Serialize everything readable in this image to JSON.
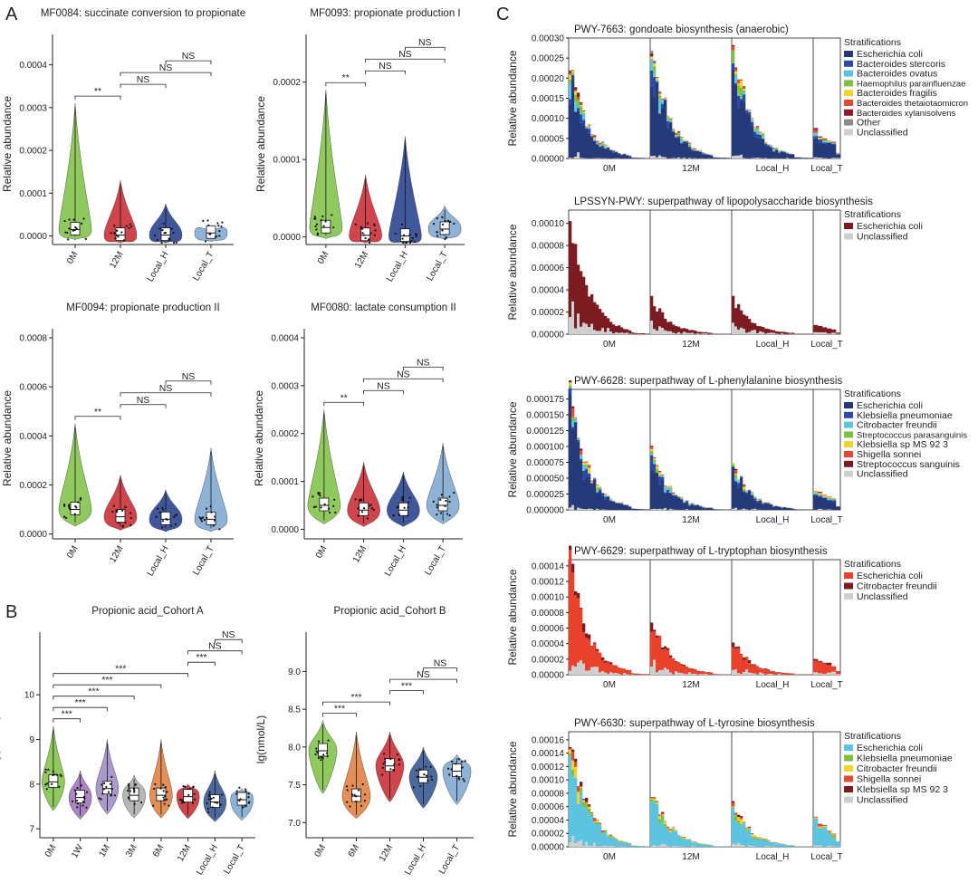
{
  "panels": {
    "A": "A",
    "B": "B",
    "C": "C"
  },
  "chart_data": [
    {
      "id": "A1",
      "type": "violin",
      "title": "MF0084: succinate conversion to propionate",
      "ylabel": "Relative abundance",
      "categories": [
        "0M",
        "12M",
        "Local_H",
        "Local_T"
      ],
      "colors": [
        "#7dc142",
        "#c8232c",
        "#1e3a8a",
        "#7aa6cf"
      ],
      "yticks": [
        "0.0000",
        "0.0001",
        "0.0002",
        "0.0003",
        "0.0004"
      ],
      "ylim": [
        -2e-05,
        0.00045
      ],
      "medians": [
        1.5e-05,
        2e-06,
        2e-06,
        7e-06
      ],
      "maxes": [
        0.00031,
        0.00013,
        7.5e-05,
        1.5e-05
      ],
      "comparisons": [
        {
          "pair": [
            0,
            1
          ],
          "label": "**"
        },
        {
          "pair": [
            1,
            2
          ],
          "label": "NS"
        },
        {
          "pair": [
            1,
            3
          ],
          "label": "NS"
        },
        {
          "pair": [
            2,
            3
          ],
          "label": "NS"
        }
      ]
    },
    {
      "id": "A2",
      "type": "violin",
      "title": "MF0093: propionate production I",
      "ylabel": "Relative abundance",
      "categories": [
        "0M",
        "12M",
        "Local_H",
        "Local_T"
      ],
      "colors": [
        "#7dc142",
        "#c8232c",
        "#1e3a8a",
        "#7aa6cf"
      ],
      "yticks": [
        "0.0000",
        "0.0001",
        "0.0002"
      ],
      "ylim": [
        -1e-05,
        0.00025
      ],
      "medians": [
        1.2e-05,
        2e-06,
        1e-06,
        1e-05
      ],
      "maxes": [
        0.00019,
        8e-05,
        0.00013,
        4e-05
      ],
      "comparisons": [
        {
          "pair": [
            0,
            1
          ],
          "label": "**"
        },
        {
          "pair": [
            1,
            2
          ],
          "label": "NS"
        },
        {
          "pair": [
            1,
            3
          ],
          "label": "NS"
        },
        {
          "pair": [
            2,
            3
          ],
          "label": "NS"
        }
      ]
    },
    {
      "id": "A3",
      "type": "violin",
      "title": "MF0094: propionate production II",
      "ylabel": "Relative abundance",
      "categories": [
        "0M",
        "12M",
        "Local_H",
        "Local_T"
      ],
      "colors": [
        "#7dc142",
        "#c8232c",
        "#1e3a8a",
        "#7aa6cf"
      ],
      "yticks": [
        "0.0000",
        "0.0002",
        "0.0004",
        "0.0006",
        "0.0008"
      ],
      "ylim": [
        -2e-05,
        0.0008
      ],
      "medians": [
        0.0001,
        7e-05,
        6e-05,
        6e-05
      ],
      "maxes": [
        0.00045,
        0.00024,
        0.00018,
        0.00035
      ],
      "comparisons": [
        {
          "pair": [
            0,
            1
          ],
          "label": "**"
        },
        {
          "pair": [
            1,
            2
          ],
          "label": "NS"
        },
        {
          "pair": [
            1,
            3
          ],
          "label": "NS"
        },
        {
          "pair": [
            2,
            3
          ],
          "label": "NS"
        }
      ]
    },
    {
      "id": "A4",
      "type": "violin",
      "title": "MF0080: lactate consumption II",
      "ylabel": "Relative abundance",
      "categories": [
        "0M",
        "12M",
        "Local_H",
        "Local_T"
      ],
      "colors": [
        "#7dc142",
        "#c8232c",
        "#1e3a8a",
        "#7aa6cf"
      ],
      "yticks": [
        "0.0000",
        "0.0001",
        "0.0002",
        "0.0003",
        "0.0004"
      ],
      "ylim": [
        -2e-05,
        0.0004
      ],
      "medians": [
        5e-05,
        4e-05,
        4e-05,
        5e-05
      ],
      "maxes": [
        0.00025,
        0.00014,
        0.00012,
        0.00018
      ],
      "comparisons": [
        {
          "pair": [
            0,
            1
          ],
          "label": "**"
        },
        {
          "pair": [
            1,
            2
          ],
          "label": "NS"
        },
        {
          "pair": [
            1,
            3
          ],
          "label": "NS"
        },
        {
          "pair": [
            2,
            3
          ],
          "label": "NS"
        }
      ]
    },
    {
      "id": "B1",
      "type": "violin",
      "title": "Propionic acid_Cohort A",
      "ylabel": "lg(nmol/L)",
      "categories": [
        "0M",
        "1W",
        "1M",
        "3M",
        "6M",
        "12M",
        "Local_H",
        "Local_T"
      ],
      "colors": [
        "#7dc142",
        "#9e6fb8",
        "#9e87c3",
        "#a9a9a9",
        "#e07b39",
        "#c8232c",
        "#2c4f8c",
        "#7aa6cf"
      ],
      "yticks": [
        "7",
        "8",
        "9",
        "10"
      ],
      "ylim": [
        6.8,
        11.2
      ],
      "medians": [
        8.05,
        7.7,
        7.9,
        7.75,
        7.75,
        7.72,
        7.6,
        7.65
      ],
      "maxes": [
        9.3,
        8.3,
        9.0,
        8.2,
        9.0,
        8.0,
        8.3,
        7.9
      ],
      "comparisons": [
        {
          "pair": [
            0,
            1
          ],
          "label": "***"
        },
        {
          "pair": [
            0,
            2
          ],
          "label": "***"
        },
        {
          "pair": [
            0,
            3
          ],
          "label": "***"
        },
        {
          "pair": [
            0,
            4
          ],
          "label": "***"
        },
        {
          "pair": [
            0,
            5
          ],
          "label": "***"
        },
        {
          "pair": [
            5,
            6
          ],
          "label": "***"
        },
        {
          "pair": [
            5,
            7
          ],
          "label": "NS"
        },
        {
          "pair": [
            6,
            7
          ],
          "label": "NS"
        }
      ]
    },
    {
      "id": "B2",
      "type": "violin",
      "title": "Propionic acid_Cohort B",
      "ylabel": "lg(nmol/L)",
      "categories": [
        "0M",
        "6M",
        "12M",
        "Local_H",
        "Local_T"
      ],
      "colors": [
        "#7dc142",
        "#e07b39",
        "#c8232c",
        "#2c4f8c",
        "#7aa6cf"
      ],
      "yticks": [
        "7.0",
        "7.5",
        "8.0",
        "8.5",
        "9.0"
      ],
      "ylim": [
        6.8,
        9.4
      ],
      "medians": [
        7.95,
        7.35,
        7.75,
        7.6,
        7.68
      ],
      "maxes": [
        8.35,
        8.2,
        8.2,
        8.0,
        7.9
      ],
      "comparisons": [
        {
          "pair": [
            0,
            1
          ],
          "label": "***"
        },
        {
          "pair": [
            0,
            2
          ],
          "label": "***"
        },
        {
          "pair": [
            2,
            3
          ],
          "label": "***"
        },
        {
          "pair": [
            2,
            4
          ],
          "label": "NS"
        },
        {
          "pair": [
            3,
            4
          ],
          "label": "NS"
        }
      ]
    },
    {
      "id": "C1",
      "type": "stacked-bar",
      "title": "PWY-7663: gondoate biosynthesis (anaerobic)",
      "ylabel": "Relative abundance",
      "groups": [
        "0M",
        "12M",
        "Local_H",
        "Local_T"
      ],
      "yticks": [
        "0.00000",
        "0.00005",
        "0.00010",
        "0.00015",
        "0.00020",
        "0.00025",
        "0.00030"
      ],
      "ymax": 0.0003,
      "legend_title": "Stratifications",
      "legend": [
        "Escherichia coli",
        "Bacteroides stercoris",
        "Bacteroides ovatus",
        "Haemophilus parainfluenzae",
        "Bacteroides fragilis",
        "Bacteroides thetaiotaomicron",
        "Bacteroides xylanisolvens",
        "Other",
        "Unclassified"
      ],
      "colors": [
        "#263a7a",
        "#2b4aa6",
        "#5cc3e0",
        "#7dc142",
        "#f2d22e",
        "#e34a33",
        "#8b1a2b",
        "#8c8c8c",
        "#cfcfcf"
      ],
      "group_peaks": [
        0.00023,
        0.00029,
        0.00029,
        7e-05
      ]
    },
    {
      "id": "C2",
      "type": "stacked-bar",
      "title": "LPSSYN-PWY: superpathway of lipopolysaccharide biosynthesis",
      "ylabel": "Relative abundance",
      "groups": [
        "0M",
        "12M",
        "Local_H",
        "Local_T"
      ],
      "yticks": [
        "0.00000",
        "0.00002",
        "0.00004",
        "0.00006",
        "0.00008",
        "0.00010"
      ],
      "ymax": 0.000112,
      "legend_title": "Stratifications",
      "legend": [
        "Escherichia coli",
        "Unclassified"
      ],
      "colors": [
        "#7a1c22",
        "#cfcfcf"
      ],
      "group_peaks": [
        0.00011,
        3.2e-05,
        3.2e-05,
        8e-06
      ]
    },
    {
      "id": "C3",
      "type": "stacked-bar",
      "title": "PWY-6628: superpathway of L-phenylalanine biosynthesis",
      "ylabel": "Relative abundance",
      "groups": [
        "0M",
        "12M",
        "Local_H",
        "Local_T"
      ],
      "yticks": [
        "0.000000",
        "0.000025",
        "0.000050",
        "0.000075",
        "0.000100",
        "0.000125",
        "0.000150",
        "0.000175"
      ],
      "ymax": 0.00019,
      "legend_title": "Stratifications",
      "legend": [
        "Escherichia coli",
        "Klebsiella pneumoniae",
        "Citrobacter freundii",
        "Streptococcus parasanguinis",
        "Klebsiella sp MS 92 3",
        "Shigella sonnei",
        "Streptococcus sanguinis",
        "Unclassified"
      ],
      "colors": [
        "#263a7a",
        "#2b4aa6",
        "#5cc3e0",
        "#7dc142",
        "#f2d22e",
        "#e34a33",
        "#7a1c22",
        "#cfcfcf"
      ],
      "group_peaks": [
        0.00018,
        9.5e-05,
        7.5e-05,
        3e-05
      ]
    },
    {
      "id": "C4",
      "type": "stacked-bar",
      "title": "PWY-6629: superpathway of L-tryptophan biosynthesis",
      "ylabel": "Relative abundance",
      "groups": [
        "0M",
        "12M",
        "Local_H",
        "Local_T"
      ],
      "yticks": [
        "0.00000",
        "0.00002",
        "0.00004",
        "0.00006",
        "0.00008",
        "0.00010",
        "0.00012",
        "0.00014"
      ],
      "ymax": 0.000148,
      "legend_title": "Stratifications",
      "legend": [
        "Escherichia coli",
        "Citrobacter freundii",
        "Unclassified"
      ],
      "colors": [
        "#e8412c",
        "#7a1c22",
        "#cfcfcf"
      ],
      "group_peaks": [
        0.000145,
        7.5e-05,
        4.5e-05,
        2.2e-05
      ]
    },
    {
      "id": "C5",
      "type": "stacked-bar",
      "title": "PWY-6630: superpathway of L-tyrosine biosynthesis",
      "ylabel": "Relative abundance",
      "groups": [
        "0M",
        "12M",
        "Local_H",
        "Local_T"
      ],
      "yticks": [
        "0.00000",
        "0.00002",
        "0.00004",
        "0.00006",
        "0.00008",
        "0.00010",
        "0.00012",
        "0.00014",
        "0.00016"
      ],
      "ymax": 0.000172,
      "legend_title": "Stratifications",
      "legend": [
        "Escherichia coli",
        "Klebsiella pneumoniae",
        "Citrobacter freundii",
        "Shigella sonnei",
        "Klebsiella sp MS 92 3",
        "Unclassified"
      ],
      "colors": [
        "#5cc3e0",
        "#7dc142",
        "#f2d22e",
        "#e34a33",
        "#7a1c22",
        "#cfcfcf"
      ],
      "group_peaks": [
        0.000165,
        8.5e-05,
        6.5e-05,
        4e-05
      ]
    }
  ]
}
